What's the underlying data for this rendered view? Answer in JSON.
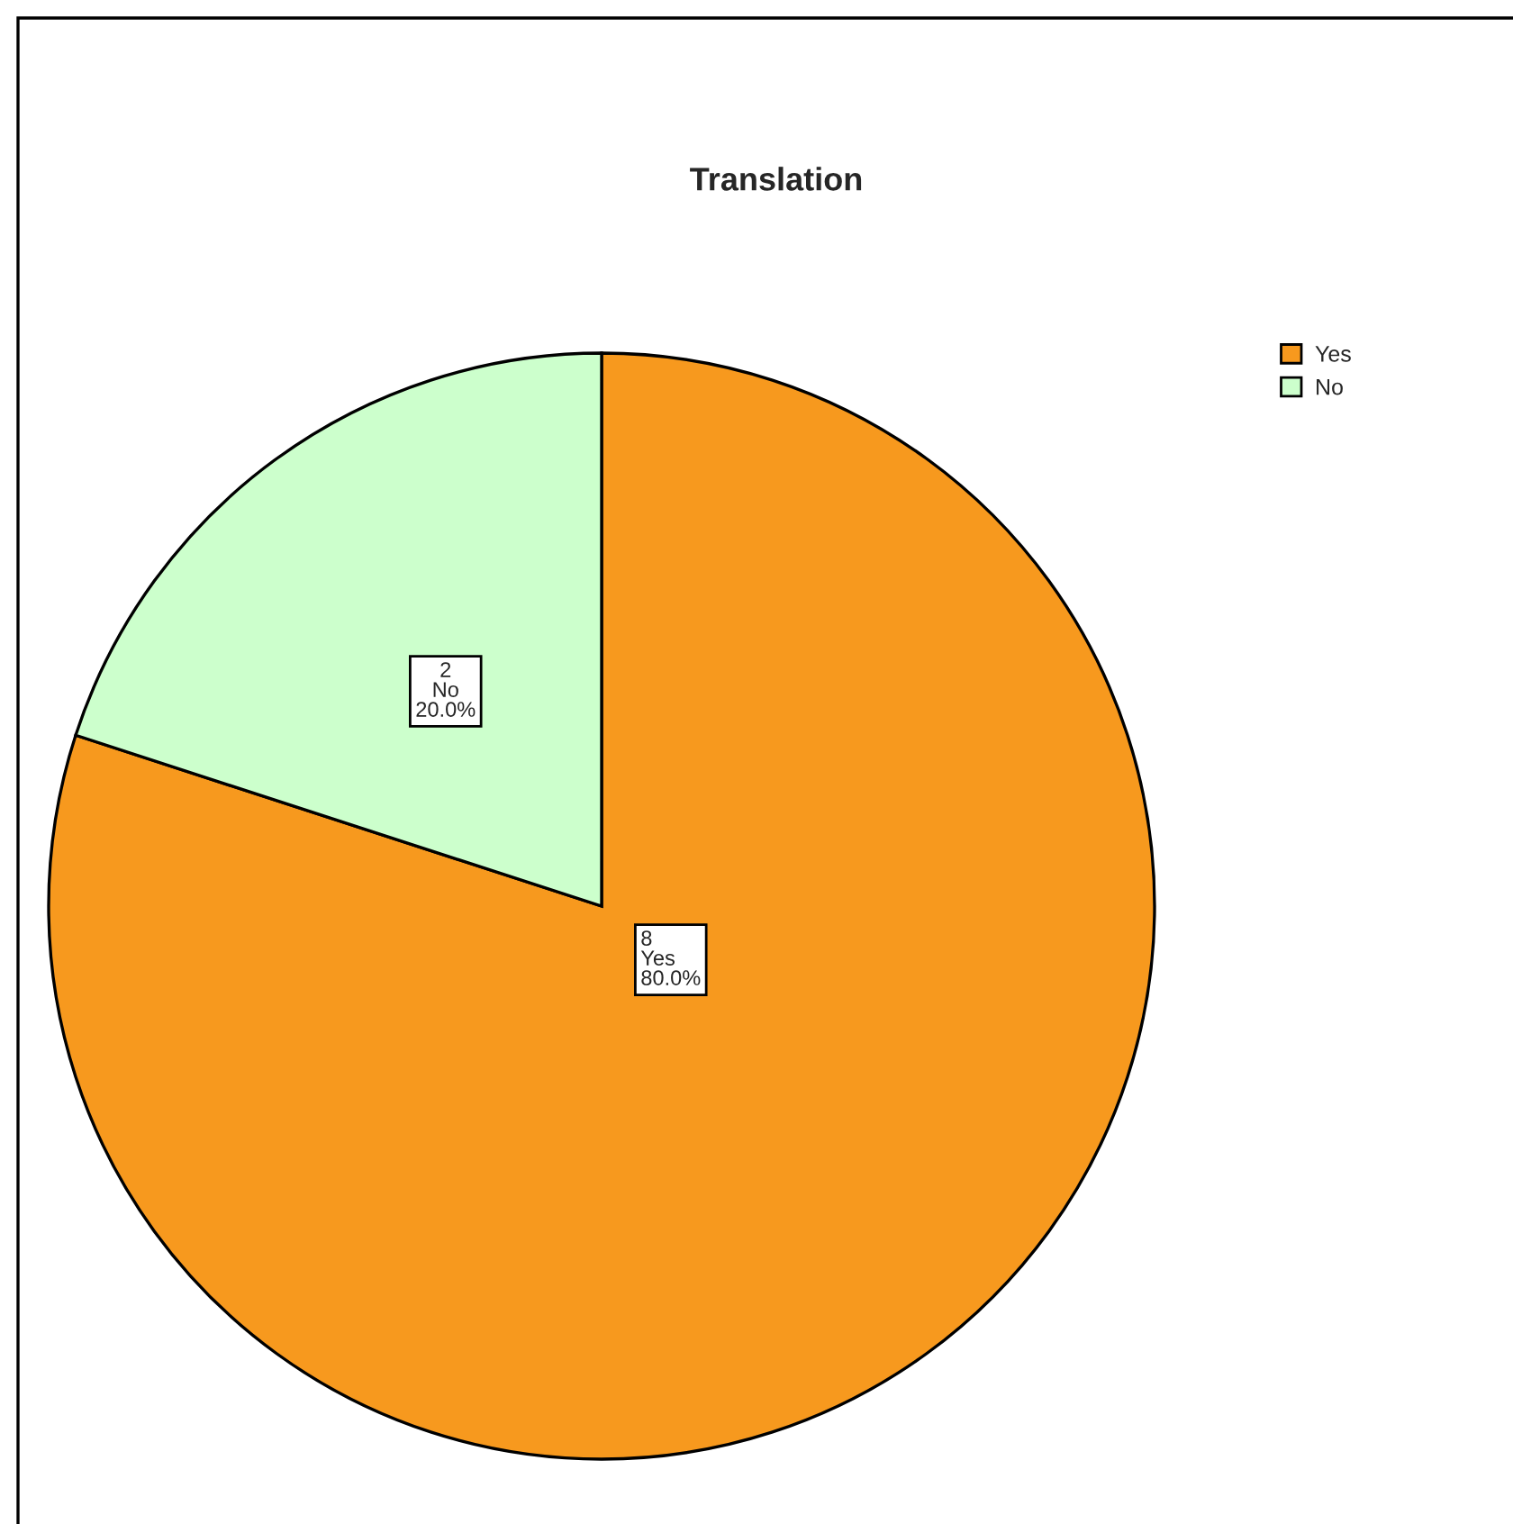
{
  "chart_data": {
    "type": "pie",
    "title": "Translation",
    "categories": [
      "Yes",
      "No"
    ],
    "values": [
      8,
      2
    ],
    "colors": [
      "#f7991e",
      "#ccffcc"
    ],
    "value_labels": [
      "8\nYes\n80.0%",
      "2\nNo\n20.0%"
    ],
    "legend": "top right"
  }
}
